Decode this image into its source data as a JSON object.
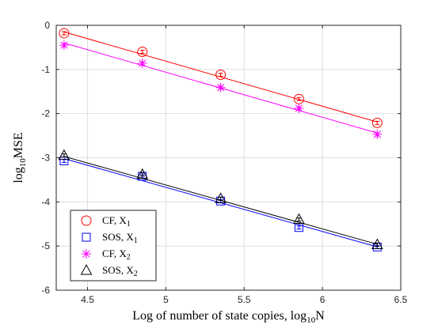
{
  "chart_data": {
    "type": "line",
    "title": "",
    "xlabel": "Log of number of state copies, log",
    "xlabel_sub": "10",
    "xlabel_tail": "N",
    "ylabel": "log",
    "ylabel_sub": "10",
    "ylabel_tail": "MSE",
    "xlim": [
      4.3,
      6.5
    ],
    "ylim": [
      -6,
      0
    ],
    "xticks": [
      4.5,
      5,
      5.5,
      6,
      6.5
    ],
    "xtick_labels": [
      "4.5",
      "5",
      "5.5",
      "6",
      "6.5"
    ],
    "yticks": [
      0,
      -1,
      -2,
      -3,
      -4,
      -5,
      -6
    ],
    "ytick_labels": [
      "0",
      "-1",
      "-2",
      "-3",
      "-4",
      "-5",
      "-6"
    ],
    "grid": true,
    "legend_position": "bottom-left",
    "x": [
      4.35,
      4.85,
      5.35,
      5.85,
      6.35
    ],
    "series": [
      {
        "label_main": "CF, X",
        "label_sub": "1",
        "marker": "circle",
        "color": "#ff0000",
        "values": [
          -0.18,
          -0.6,
          -1.12,
          -1.67,
          -2.21
        ],
        "fit": [
          -0.15,
          -2.19
        ]
      },
      {
        "label_main": "SOS, X",
        "label_sub": "1",
        "marker": "square",
        "color": "#0000ff",
        "values": [
          -3.07,
          -3.42,
          -3.98,
          -4.58,
          -5.02
        ],
        "fit": [
          -3.02,
          -5.02
        ]
      },
      {
        "label_main": "CF, X",
        "label_sub": "2",
        "marker": "asterisk",
        "color": "#ff00ff",
        "values": [
          -0.45,
          -0.86,
          -1.41,
          -1.88,
          -2.47
        ],
        "fit": [
          -0.4,
          -2.44
        ]
      },
      {
        "label_main": "SOS, X",
        "label_sub": "2",
        "marker": "triangle",
        "color": "#000000",
        "values": [
          -2.95,
          -3.38,
          -3.93,
          -4.4,
          -4.97
        ],
        "fit": [
          -2.97,
          -4.96
        ]
      }
    ]
  }
}
